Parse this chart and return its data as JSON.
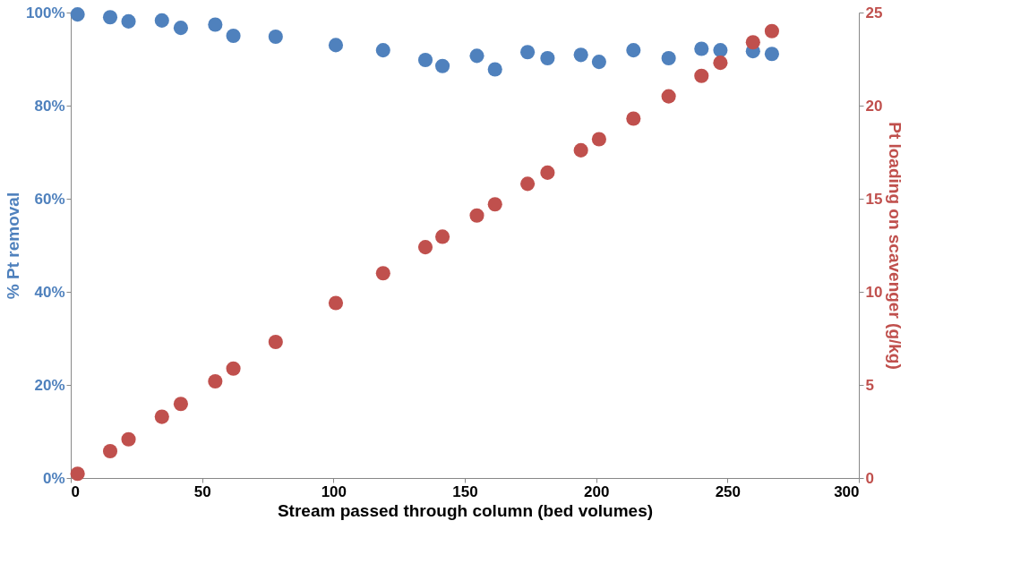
{
  "chart_data": {
    "type": "scatter",
    "xlabel": "Stream passed through column (bed volumes)",
    "ylabel": "% Pt removal",
    "y2label": "Pt loading on scavenger (g/kg)",
    "x": [
      2.6,
      15,
      22,
      34.7,
      41.9,
      55,
      61.9,
      78,
      100.9,
      118.9,
      135,
      141.5,
      154.6,
      161.5,
      173.9,
      181.5,
      194.2,
      201.1,
      214.2,
      227.6,
      240.1,
      247.3,
      259.7,
      266.9
    ],
    "series": [
      {
        "name": null,
        "color": "#4f81bd",
        "axis": "y",
        "values": [
          99.6,
          99,
          98.1,
          98.3,
          96.7,
          97.4,
          95,
          94.8,
          93,
          91.9,
          89.8,
          88.5,
          90.7,
          87.8,
          91.5,
          90.2,
          90.9,
          89.4,
          91.9,
          90.2,
          92.2,
          91.9,
          91.7,
          91.1
        ]
      },
      {
        "name": null,
        "color": "#c0504d",
        "axis": "y2",
        "values": [
          0.23,
          1.44,
          2.08,
          3.29,
          3.98,
          5.19,
          5.88,
          7.31,
          9.4,
          11.0,
          12.4,
          12.96,
          14.1,
          14.7,
          15.8,
          16.4,
          17.6,
          18.2,
          19.3,
          20.5,
          21.6,
          22.3,
          23.4,
          24.0
        ]
      }
    ],
    "xlim": [
      0,
      300
    ],
    "xticks": [
      0,
      50,
      100,
      150,
      200,
      250,
      300
    ],
    "ylim": [
      0,
      100
    ],
    "yticks": [
      {
        "value": 0,
        "label": "0%"
      },
      {
        "value": 20,
        "label": "20%"
      },
      {
        "value": 40,
        "label": "40%"
      },
      {
        "value": 60,
        "label": "60%"
      },
      {
        "value": 80,
        "label": "80%"
      },
      {
        "value": 100,
        "label": "100%"
      }
    ],
    "y2lim": [
      0,
      25
    ],
    "y2ticks": [
      0,
      5,
      10,
      15,
      20,
      25
    ],
    "marker": "circle",
    "grid": false,
    "legend": false
  }
}
